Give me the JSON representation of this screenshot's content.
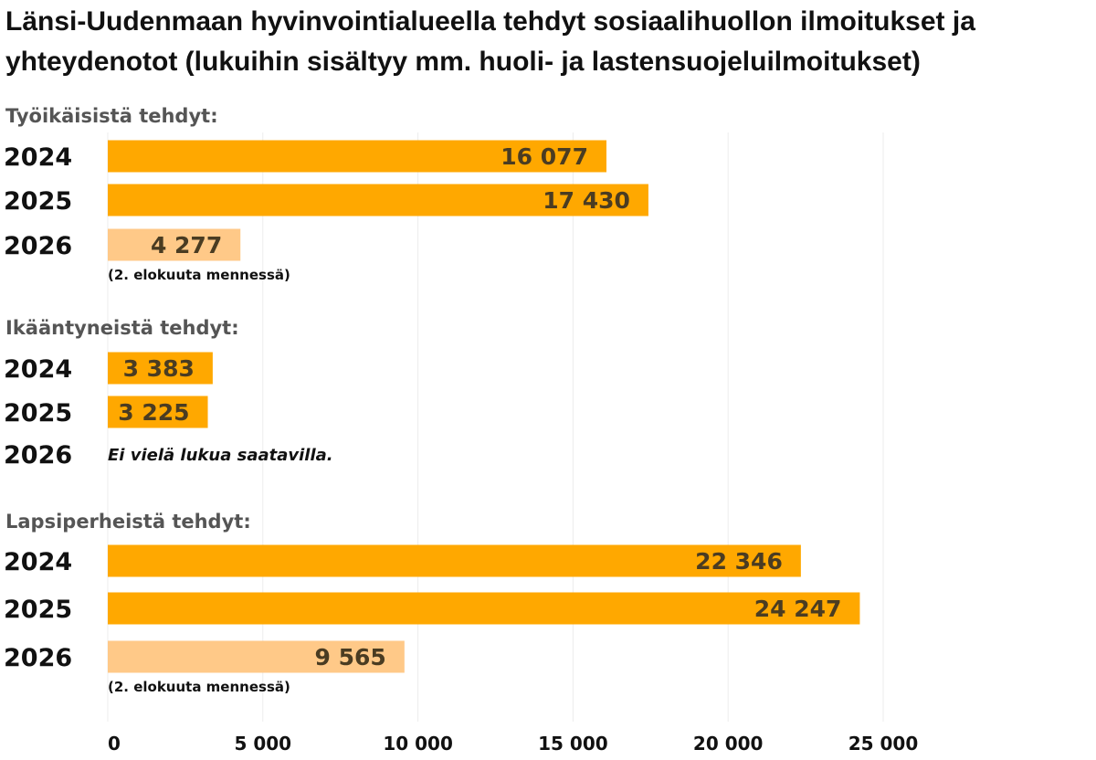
{
  "chart_data": {
    "type": "bar",
    "title": "Länsi-Uudenmaan hyvinvointialueella tehdyt sosiaalihuollon ilmoitukset ja yhteydenotot (lukuihin sisältyy mm. huoli- ja lastensuojeluilmoitukset)",
    "xlim": [
      0,
      25000
    ],
    "xticks": [
      0,
      5000,
      10000,
      15000,
      20000,
      25000
    ],
    "xtick_labels": [
      "0",
      "5 000",
      "10 000",
      "15 000",
      "20 000",
      "25 000"
    ],
    "grid": true,
    "colors": {
      "full_year": "#FFA800",
      "partial_year": "#FFC988"
    },
    "groups": [
      {
        "heading": "Työikäisistä tehdyt:",
        "rows": [
          {
            "year": "2024",
            "value": 16077,
            "label": "16 077",
            "partial": false
          },
          {
            "year": "2025",
            "value": 17430,
            "label": "17 430",
            "partial": false
          },
          {
            "year": "2026",
            "value": 4277,
            "label": "4 277",
            "partial": true,
            "note": "(2. elokuuta mennessä)"
          }
        ]
      },
      {
        "heading": "Ikääntyneistä tehdyt:",
        "rows": [
          {
            "year": "2024",
            "value": 3383,
            "label": "3 383",
            "partial": false
          },
          {
            "year": "2025",
            "value": 3225,
            "label": "3 225",
            "partial": false
          },
          {
            "year": "2026",
            "value": null,
            "label": "",
            "partial": false,
            "no_data_text": "Ei vielä lukua saatavilla."
          }
        ]
      },
      {
        "heading": "Lapsiperheistä tehdyt:",
        "rows": [
          {
            "year": "2024",
            "value": 22346,
            "label": "22 346",
            "partial": false
          },
          {
            "year": "2025",
            "value": 24247,
            "label": "24 247",
            "partial": false
          },
          {
            "year": "2026",
            "value": 9565,
            "label": "9 565",
            "partial": true,
            "note": "(2. elokuuta mennessä)"
          }
        ]
      }
    ]
  }
}
